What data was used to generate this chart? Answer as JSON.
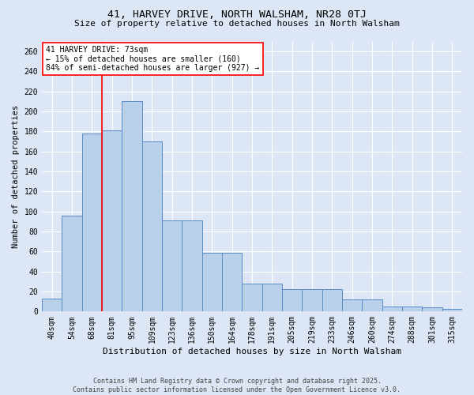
{
  "title1": "41, HARVEY DRIVE, NORTH WALSHAM, NR28 0TJ",
  "title2": "Size of property relative to detached houses in North Walsham",
  "xlabel": "Distribution of detached houses by size in North Walsham",
  "ylabel": "Number of detached properties",
  "categories": [
    "40sqm",
    "54sqm",
    "68sqm",
    "81sqm",
    "95sqm",
    "109sqm",
    "123sqm",
    "136sqm",
    "150sqm",
    "164sqm",
    "178sqm",
    "191sqm",
    "205sqm",
    "219sqm",
    "233sqm",
    "246sqm",
    "260sqm",
    "274sqm",
    "288sqm",
    "301sqm",
    "315sqm"
  ],
  "values": [
    13,
    96,
    178,
    181,
    210,
    170,
    91,
    91,
    59,
    59,
    28,
    28,
    22,
    22,
    22,
    12,
    12,
    5,
    5,
    4,
    3
  ],
  "bar_color": "#b8d0ea",
  "bar_edge_color": "#5b8cc8",
  "red_line_x": 2.5,
  "annotation_text": "41 HARVEY DRIVE: 73sqm\n← 15% of detached houses are smaller (160)\n84% of semi-detached houses are larger (927) →",
  "footer1": "Contains HM Land Registry data © Crown copyright and database right 2025.",
  "footer2": "Contains public sector information licensed under the Open Government Licence v3.0.",
  "bg_color": "#dce6f5",
  "plot_bg_color": "#dce6f5",
  "ylim": [
    0,
    270
  ],
  "yticks": [
    0,
    20,
    40,
    60,
    80,
    100,
    120,
    140,
    160,
    180,
    200,
    220,
    240,
    260
  ],
  "grid_color": "#ffffff",
  "title1_fontsize": 9.5,
  "title2_fontsize": 8.0,
  "xlabel_fontsize": 8.0,
  "ylabel_fontsize": 7.5,
  "tick_fontsize": 7.0,
  "annot_fontsize": 7.0,
  "footer_fontsize": 6.0
}
